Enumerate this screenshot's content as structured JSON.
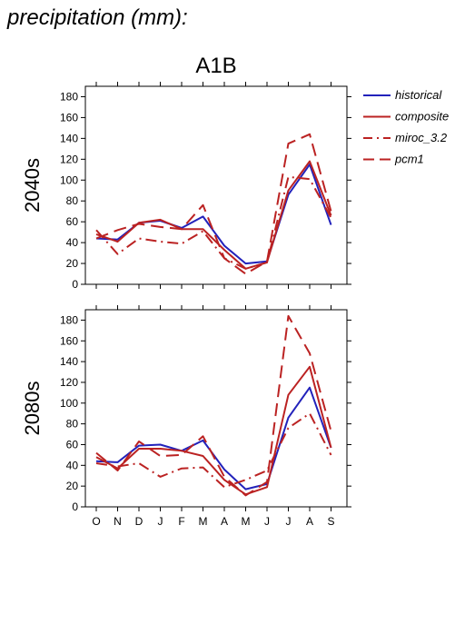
{
  "header": {
    "title": "precipitation (mm):"
  },
  "chart_data": {
    "type": "line",
    "title": "A1B",
    "categories": [
      "O",
      "N",
      "D",
      "J",
      "F",
      "M",
      "A",
      "M",
      "J",
      "J",
      "A",
      "S"
    ],
    "ylim": [
      0,
      190
    ],
    "yticks": [
      0,
      20,
      40,
      60,
      80,
      100,
      120,
      140,
      160,
      180
    ],
    "grid": false,
    "legend": {
      "position": "right",
      "entries": [
        {
          "name": "historical",
          "color": "#2222bb",
          "dash": "solid"
        },
        {
          "name": "composite",
          "color": "#bb2222",
          "dash": "solid"
        },
        {
          "name": "miroc_3.2",
          "color": "#bb2222",
          "dash": "dashdot"
        },
        {
          "name": "pcm1",
          "color": "#bb2222",
          "dash": "dash"
        }
      ]
    },
    "panels": [
      {
        "ylabel": "2040s",
        "series": [
          {
            "name": "historical",
            "values": [
              44,
              43,
              59,
              61,
              54,
              65,
              37,
              20,
              22,
              86,
              115,
              57
            ]
          },
          {
            "name": "composite",
            "values": [
              48,
              41,
              59,
              62,
              53,
              53,
              33,
              15,
              21,
              90,
              118,
              66
            ]
          },
          {
            "name": "miroc_3.2",
            "values": [
              52,
              29,
              44,
              41,
              39,
              51,
              25,
              15,
              21,
              103,
              101,
              64
            ]
          },
          {
            "name": "pcm1",
            "values": [
              44,
              52,
              58,
              55,
              53,
              76,
              25,
              10,
              22,
              135,
              144,
              70
            ]
          }
        ]
      },
      {
        "ylabel": "2080s",
        "series": [
          {
            "name": "historical",
            "values": [
              44,
              43,
              59,
              60,
              54,
              64,
              36,
              17,
              22,
              86,
              115,
              57
            ]
          },
          {
            "name": "composite",
            "values": [
              48,
              37,
              56,
              56,
              54,
              49,
              26,
              12,
              19,
              108,
              135,
              57
            ]
          },
          {
            "name": "miroc_3.2",
            "values": [
              42,
              39,
              42,
              29,
              37,
              38,
              19,
              26,
              35,
              76,
              90,
              50
            ]
          },
          {
            "name": "pcm1",
            "values": [
              52,
              35,
              63,
              49,
              50,
              68,
              29,
              11,
              24,
              184,
              148,
              73
            ]
          }
        ]
      }
    ]
  }
}
